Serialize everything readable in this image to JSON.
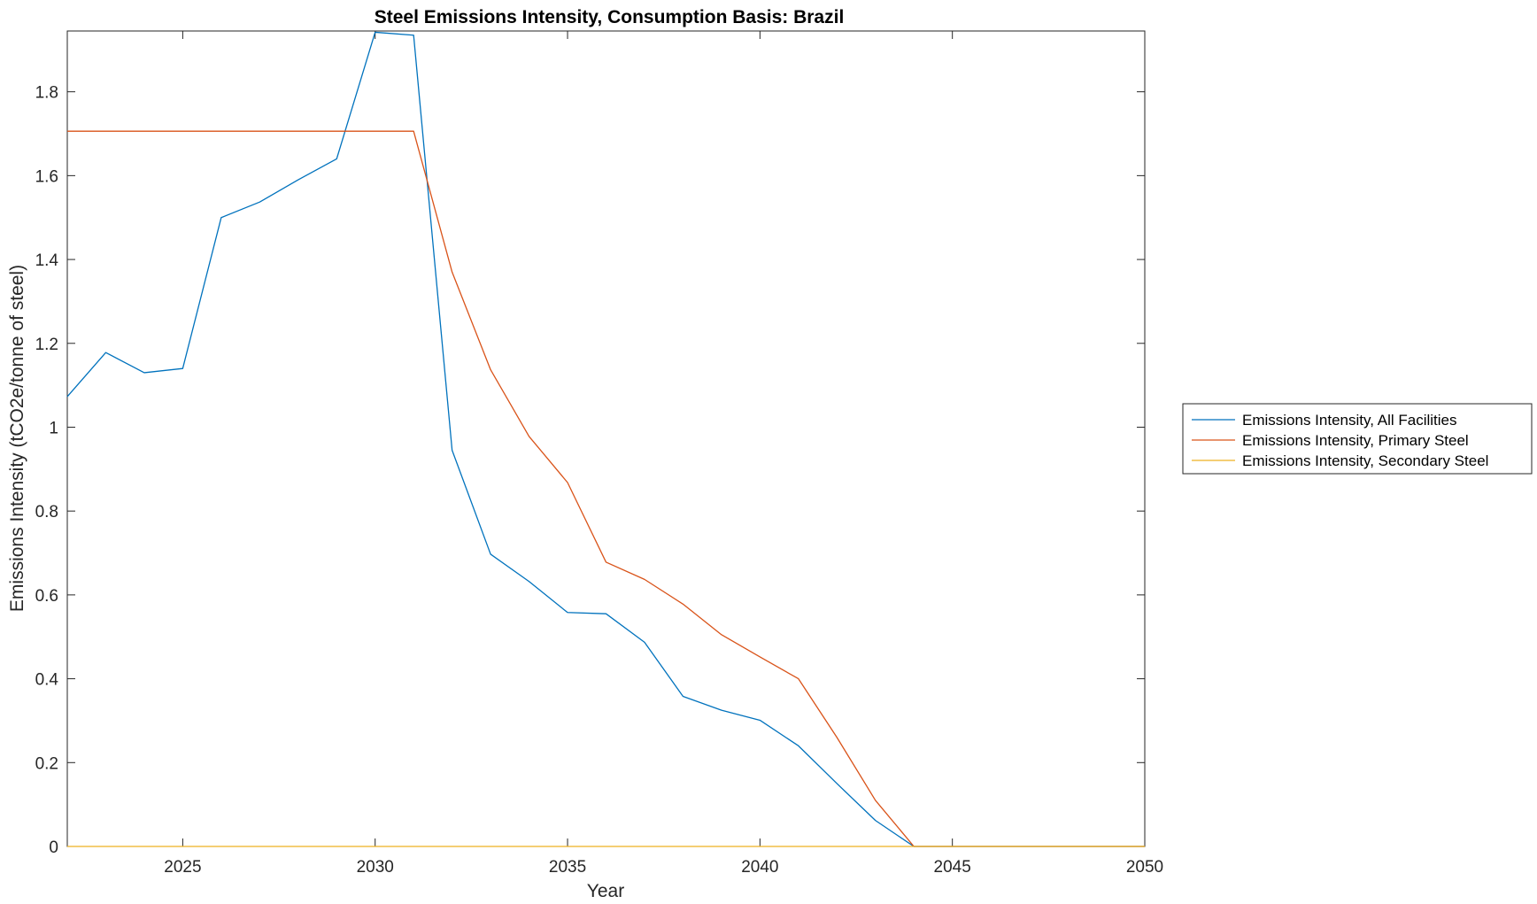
{
  "chart_data": {
    "type": "line",
    "title": "Steel Emissions Intensity, Consumption Basis: Brazil",
    "xlabel": "Year",
    "ylabel": "Emissions Intensity (tCO2e/tonne of steel)",
    "xlim": [
      2022,
      2050
    ],
    "ylim": [
      0,
      1.945
    ],
    "xticks": [
      2025,
      2030,
      2035,
      2040,
      2045,
      2050
    ],
    "xtick_labels": [
      "2025",
      "2030",
      "2035",
      "2040",
      "2045",
      "2050"
    ],
    "yticks": [
      0,
      0.2,
      0.4,
      0.6,
      0.8,
      1,
      1.2,
      1.4,
      1.6,
      1.8
    ],
    "ytick_labels": [
      "0",
      "0.2",
      "0.4",
      "0.6",
      "0.8",
      "1",
      "1.2",
      "1.4",
      "1.6",
      "1.8"
    ],
    "grid": false,
    "legend_position": "outside-right",
    "x": [
      2022,
      2023,
      2024,
      2025,
      2026,
      2027,
      2028,
      2029,
      2030,
      2031,
      2032,
      2033,
      2034,
      2035,
      2036,
      2037,
      2038,
      2039,
      2040,
      2041,
      2042,
      2043,
      2044,
      2045,
      2046,
      2047,
      2048,
      2049,
      2050
    ],
    "series": [
      {
        "name": "Emissions Intensity, All Facilities",
        "color": "#0072BD",
        "values": [
          1.073,
          1.178,
          1.13,
          1.14,
          1.5,
          1.537,
          1.59,
          1.64,
          1.942,
          1.935,
          0.945,
          0.697,
          0.632,
          0.558,
          0.555,
          0.487,
          0.358,
          0.325,
          0.301,
          0.24,
          0.15,
          0.062,
          0.0,
          0.0,
          0.0,
          0.0,
          0.0,
          0.0,
          0.0
        ]
      },
      {
        "name": "Emissions Intensity, Primary Steel",
        "color": "#D95319",
        "values": [
          1.706,
          1.706,
          1.706,
          1.706,
          1.706,
          1.706,
          1.706,
          1.706,
          1.706,
          1.706,
          1.37,
          1.137,
          0.978,
          0.868,
          0.678,
          0.637,
          0.578,
          0.505,
          0.452,
          0.4,
          0.26,
          0.11,
          0.0,
          0.0,
          0.0,
          0.0,
          0.0,
          0.0,
          0.0
        ]
      },
      {
        "name": "Emissions Intensity, Secondary Steel",
        "color": "#EDB120",
        "values": [
          0.0,
          0.0,
          0.0,
          0.0,
          0.0,
          0.0,
          0.0,
          0.0,
          0.0,
          0.0,
          0.0,
          0.0,
          0.0,
          0.0,
          0.0,
          0.0,
          0.0,
          0.0,
          0.0,
          0.0,
          0.0,
          0.0,
          0.0,
          0.0,
          0.0,
          0.0,
          0.0,
          0.0,
          0.0
        ]
      }
    ]
  }
}
